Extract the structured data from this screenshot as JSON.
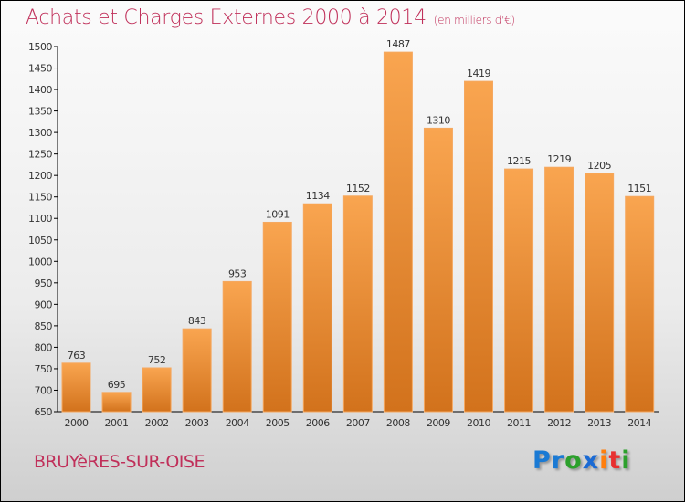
{
  "title": "Achats et Charges Externes 2000 à 2014",
  "unit": "(en milliers d'€)",
  "city": "BRUYèRES-SUR-OISE",
  "logo": {
    "letters": [
      "P",
      "r",
      "o",
      "x",
      "i",
      "t",
      "i"
    ],
    "colors": [
      "#1a7ad4",
      "#1a7ad4",
      "#2ca02c",
      "#1a6ad4",
      "#ff7f0e",
      "#e83030",
      "#2ca02c"
    ]
  },
  "chart_data": {
    "type": "bar",
    "categories": [
      "2000",
      "2001",
      "2002",
      "2003",
      "2004",
      "2005",
      "2006",
      "2007",
      "2008",
      "2009",
      "2010",
      "2011",
      "2012",
      "2013",
      "2014"
    ],
    "values": [
      763,
      695,
      752,
      843,
      953,
      1091,
      1134,
      1152,
      1487,
      1310,
      1419,
      1215,
      1219,
      1205,
      1151
    ],
    "ylim": [
      650,
      1500
    ],
    "yticks": [
      650,
      700,
      750,
      800,
      850,
      900,
      950,
      1000,
      1050,
      1100,
      1150,
      1200,
      1250,
      1300,
      1350,
      1400,
      1450,
      1500
    ],
    "bar_color": "#f0922e",
    "xlabel": "",
    "ylabel": ""
  }
}
